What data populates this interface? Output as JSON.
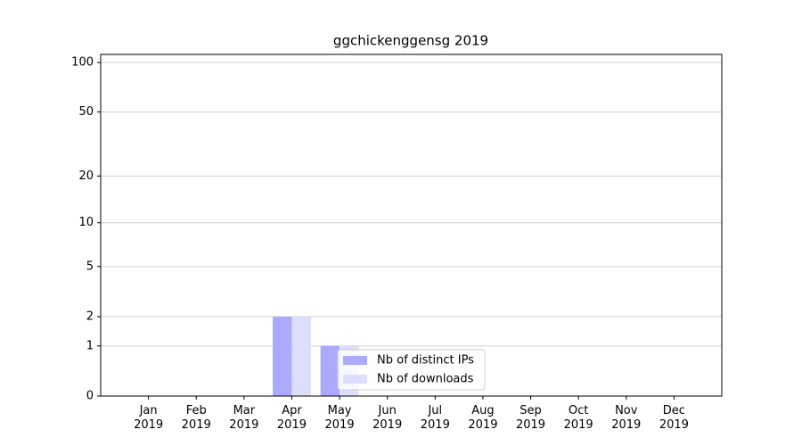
{
  "chart_data": {
    "type": "bar",
    "title": "ggchickenggensg 2019",
    "categories": [
      "Jan\n2019",
      "Feb\n2019",
      "Mar\n2019",
      "Apr\n2019",
      "May\n2019",
      "Jun\n2019",
      "Jul\n2019",
      "Aug\n2019",
      "Sep\n2019",
      "Oct\n2019",
      "Nov\n2019",
      "Dec\n2019"
    ],
    "series": [
      {
        "name": "Nb of distinct IPs",
        "color": "#aaaaff",
        "values": [
          0,
          0,
          0,
          2,
          1,
          0,
          0,
          0,
          0,
          0,
          0,
          0
        ]
      },
      {
        "name": "Nb of downloads",
        "color": "#ddddff",
        "values": [
          0,
          0,
          0,
          2,
          1,
          0,
          0,
          0,
          0,
          0,
          0,
          0
        ]
      }
    ],
    "yscale": "log1p",
    "ylim": [
      0,
      112
    ],
    "yticks": [
      0,
      1,
      2,
      5,
      10,
      20,
      50,
      100
    ],
    "grid": true,
    "legend": "lower center"
  }
}
